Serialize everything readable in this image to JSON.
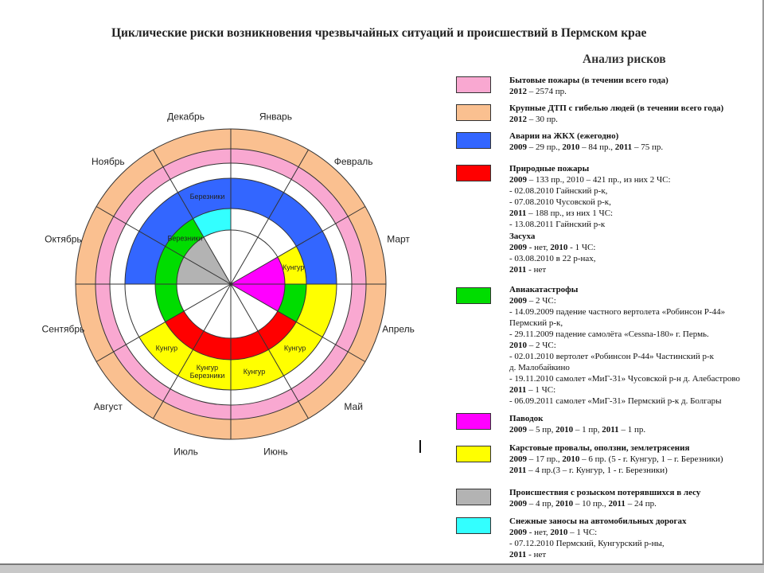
{
  "title": "Циклические риски возникновения чрезвычайных ситуаций и происшествий в Пермском крае",
  "analysis_title": "Анализ рисков",
  "colors": {
    "pink": "#f9a8d1",
    "orange": "#fac090",
    "blue": "#3366ff",
    "red": "#ff0000",
    "green": "#00dd00",
    "magenta": "#ff00ff",
    "yellow": "#ffff00",
    "gray": "#b3b3b3",
    "cyan": "#33ffff",
    "white": "#ffffff"
  },
  "wheel": {
    "months": [
      "Январь",
      "Февраль",
      "Март",
      "Апрель",
      "Май",
      "Июнь",
      "Июль",
      "Август",
      "Сентябрь",
      "Октябрь",
      "Ноябрь",
      "Декабрь"
    ],
    "ring_labels": [
      {
        "text": [
          "Березники"
        ],
        "month": 11,
        "ring": "r4"
      },
      {
        "text": [
          "Березники"
        ],
        "month": 10,
        "ring": "r5"
      },
      {
        "text": [
          "Кунгур"
        ],
        "month": 2,
        "ring": "r5"
      },
      {
        "text": [
          "Кунгур"
        ],
        "month": 4,
        "ring": "r4"
      },
      {
        "text": [
          "Кунгур"
        ],
        "month": 5,
        "ring": "r4"
      },
      {
        "text": [
          "Кунгур",
          "Березники"
        ],
        "month": 6,
        "ring": "r4"
      },
      {
        "text": [
          "Кунгур"
        ],
        "month": 7,
        "ring": "r4"
      }
    ]
  },
  "legend": [
    {
      "color": "pink",
      "lines": [
        [
          {
            "t": "Бытовые пожары (в течении всего года)",
            "b": true
          }
        ],
        [
          {
            "t": "2012",
            "b": true
          },
          {
            "t": " – 2574 пр."
          }
        ]
      ]
    },
    {
      "color": "orange",
      "lines": [
        [
          {
            "t": "Крупные ДТП с гибелью людей (в течении всего года)",
            "b": true
          }
        ],
        [
          {
            "t": "2012",
            "b": true
          },
          {
            "t": " – 30 пр."
          }
        ]
      ]
    },
    {
      "color": "blue",
      "lines": [
        [
          {
            "t": "Аварии на ЖКХ (ежегодно)",
            "b": true
          }
        ],
        [
          {
            "t": "2009",
            "b": true
          },
          {
            "t": " – 29 пр., "
          },
          {
            "t": "2010",
            "b": true
          },
          {
            "t": " – 84 пр., "
          },
          {
            "t": "2011",
            "b": true
          },
          {
            "t": " – 75 пр."
          }
        ]
      ]
    },
    {
      "color": "red",
      "lines": [
        [
          {
            "t": "Природные пожары",
            "b": true
          }
        ],
        [
          {
            "t": "2009",
            "b": true
          },
          {
            "t": " – 133 пр., 2010 – 421 пр., из них 2 ЧС:"
          }
        ],
        [
          {
            "t": "- 02.08.2010 Гайнский р-к,"
          }
        ],
        [
          {
            "t": "- 07.08.2010 Чусовской р-к,"
          }
        ],
        [
          {
            "t": "2011",
            "b": true
          },
          {
            "t": " – 188 пр., из них 1 ЧС:"
          }
        ],
        [
          {
            "t": "- 13.08.2011 Гайнский р-к"
          }
        ]
      ]
    },
    {
      "color": null,
      "lines": [
        [
          {
            "t": "Засуха",
            "b": true
          }
        ],
        [
          {
            "t": "2009",
            "b": true
          },
          {
            "t": " - нет, "
          },
          {
            "t": "2010",
            "b": true
          },
          {
            "t": " - 1 ЧС:"
          }
        ],
        [
          {
            "t": "- 03.08.2010 в 22 р-нах,"
          }
        ],
        [
          {
            "t": "2011",
            "b": true
          },
          {
            "t": " - нет"
          }
        ]
      ]
    },
    {
      "color": "green",
      "lines": [
        [
          {
            "t": "Авиакатастрофы",
            "b": true
          }
        ],
        [
          {
            "t": "2009",
            "b": true
          },
          {
            "t": " – 2 ЧС:"
          }
        ],
        [
          {
            "t": "-   14.09.2009 падение частного вертолета «Робинсон Р-44»"
          }
        ],
        [
          {
            "t": "Пермский р-к,"
          }
        ],
        [
          {
            "t": "- 29.11.2009 падение самолёта «Cessna-180» г. Пермь."
          }
        ],
        [
          {
            "t": "2010",
            "b": true
          },
          {
            "t": " – 2 ЧС:"
          }
        ],
        [
          {
            "t": "- 02.01.2010 вертолет «Робинсон Р-44» Частинский р-к"
          }
        ],
        [
          {
            "t": "д. Малобайкино"
          }
        ],
        [
          {
            "t": "- 19.11.2010 самолет «МиГ-31» Чусовской р-н д. Алебастрово"
          }
        ],
        [
          {
            "t": "2011",
            "b": true
          },
          {
            "t": " – 1 ЧС:"
          }
        ],
        [
          {
            "t": "- 06.09.2011 самолет «МиГ-31» Пермский р-к д. Болгары"
          }
        ]
      ]
    },
    {
      "color": "magenta",
      "lines": [
        [
          {
            "t": "Паводок",
            "b": true
          }
        ],
        [
          {
            "t": "2009",
            "b": true
          },
          {
            "t": " – 5 пр, "
          },
          {
            "t": "2010",
            "b": true
          },
          {
            "t": " – 1 пр, "
          },
          {
            "t": "2011",
            "b": true
          },
          {
            "t": " – 1 пр."
          }
        ]
      ]
    },
    {
      "color": "yellow",
      "lines": [
        [
          {
            "t": "Карстовые провалы, оползни, землетрясения",
            "b": true
          }
        ],
        [
          {
            "t": "2009",
            "b": true
          },
          {
            "t": " – 17 пр., "
          },
          {
            "t": "2010",
            "b": true
          },
          {
            "t": " – 6 пр. (5 - г. Кунгур, 1 – г. Березники)"
          }
        ],
        [
          {
            "t": "2011",
            "b": true
          },
          {
            "t": " – 4 пр.(3 – г. Кунгур, 1 - г. Березники)"
          }
        ]
      ]
    },
    {
      "color": "gray",
      "lines": [
        [
          {
            "t": "Происшествия с розыском потерявшихся в лесу",
            "b": true
          }
        ],
        [
          {
            "t": "2009",
            "b": true
          },
          {
            "t": " – 4 пр, "
          },
          {
            "t": "2010",
            "b": true
          },
          {
            "t": " – 10 пр., "
          },
          {
            "t": "2011",
            "b": true
          },
          {
            "t": " – 24 пр."
          }
        ]
      ]
    },
    {
      "color": "cyan",
      "lines": [
        [
          {
            "t": "Снежные заносы на автомобильных дорогах",
            "b": true
          }
        ],
        [
          {
            "t": "2009",
            "b": true
          },
          {
            "t": " - нет, "
          },
          {
            "t": "2010",
            "b": true
          },
          {
            "t": " – 1 ЧС:"
          }
        ],
        [
          {
            "t": "- 07.12.2010 Пермский, Кунгурский р-ны,"
          }
        ],
        [
          {
            "t": "2011",
            "b": true
          },
          {
            "t": " - нет"
          }
        ]
      ]
    }
  ]
}
